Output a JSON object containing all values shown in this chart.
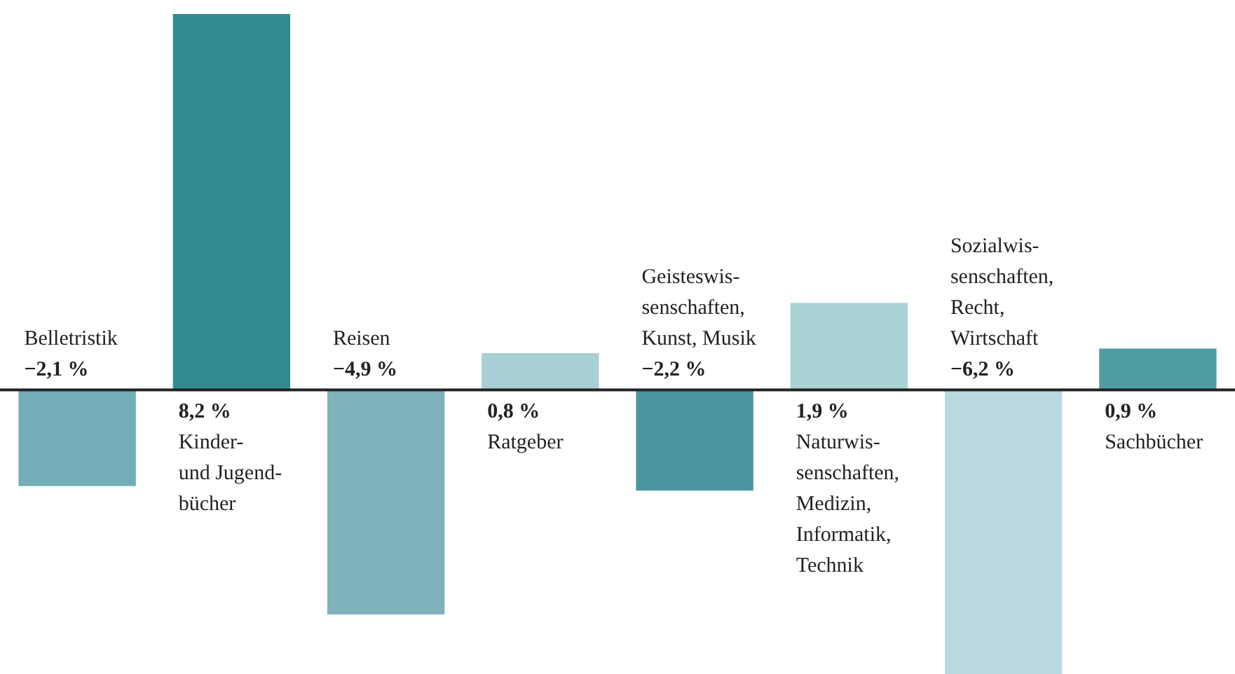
{
  "chart_data": {
    "type": "bar",
    "categories": [
      "Belletristik",
      "Kinder-\nund Jugend-\nbücher",
      "Reisen",
      "Ratgeber",
      "Geisteswis-\nsenschaften,\nKunst, Musik",
      "Naturwis-\nsenschaften,\nMedizin,\nInformatik,\nTechnik",
      "Sozialwis-\nsenschaften,\nRecht,\nWirtschaft",
      "Sachbücher"
    ],
    "values": [
      -2.1,
      8.2,
      -4.9,
      0.8,
      -2.2,
      1.9,
      -6.2,
      0.9
    ],
    "colors": [
      "#72adb8",
      "#338b8f",
      "#7fb2bb",
      "#a8cfd4",
      "#4a96a0",
      "#a9d3d5",
      "#bad8df",
      "#4f9ea4"
    ],
    "value_labels": [
      "−2,1 %",
      "8,2 %",
      "−4,9 %",
      "0,8 %",
      "−2,2 %",
      "1,9 %",
      "−6,2 %",
      "0,9 %"
    ],
    "legend": false
  }
}
